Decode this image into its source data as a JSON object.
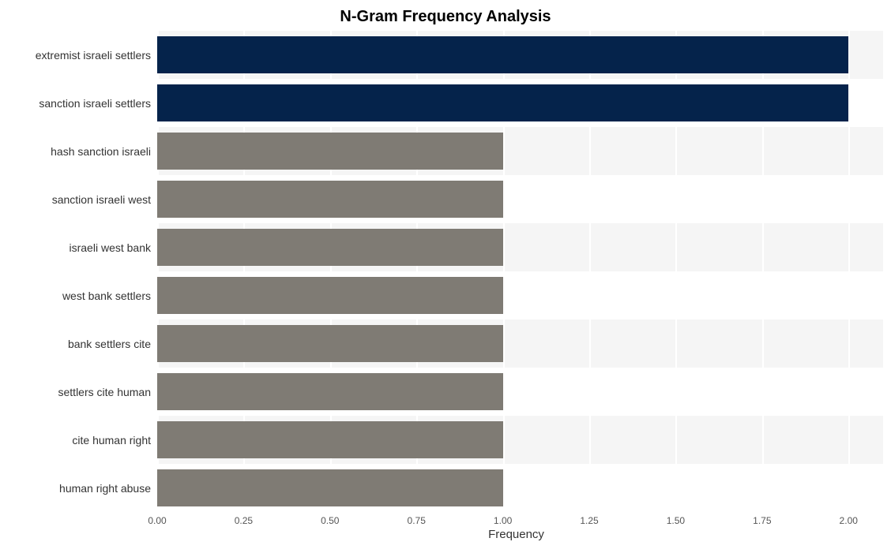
{
  "chart": {
    "type": "bar-horizontal",
    "title": "N-Gram Frequency Analysis",
    "title_fontsize": 20,
    "title_color": "#000000",
    "xlabel": "Frequency",
    "xlabel_fontsize": 15,
    "xlabel_color": "#333333",
    "y_label_fontsize": 14,
    "y_label_color": "#333333",
    "x_tick_fontsize": 12,
    "x_tick_color": "#555555",
    "background_color": "#ffffff",
    "row_bg_odd": "#f5f5f5",
    "row_bg_even": "#ffffff",
    "gridline_color_major": "#ffffff",
    "gridline_color_minor": "#ffffff",
    "x_min": 0.0,
    "x_max": 2.1,
    "x_ticks": [
      "0.00",
      "0.25",
      "0.50",
      "0.75",
      "1.00",
      "1.25",
      "1.50",
      "1.75",
      "2.00"
    ],
    "x_tick_values": [
      0.0,
      0.25,
      0.5,
      0.75,
      1.0,
      1.25,
      1.5,
      1.75,
      2.0
    ],
    "bar_height_ratio": 0.78,
    "categories": [
      "extremist israeli settlers",
      "sanction israeli settlers",
      "hash sanction israeli",
      "sanction israeli west",
      "israeli west bank",
      "west bank settlers",
      "bank settlers cite",
      "settlers cite human",
      "cite human right",
      "human right abuse"
    ],
    "values": [
      2.0,
      2.0,
      1.0,
      1.0,
      1.0,
      1.0,
      1.0,
      1.0,
      1.0,
      1.0
    ],
    "bar_colors": [
      "#05234b",
      "#05234b",
      "#7f7b74",
      "#7f7b74",
      "#7f7b74",
      "#7f7b74",
      "#7f7b74",
      "#7f7b74",
      "#7f7b74",
      "#7f7b74"
    ]
  }
}
